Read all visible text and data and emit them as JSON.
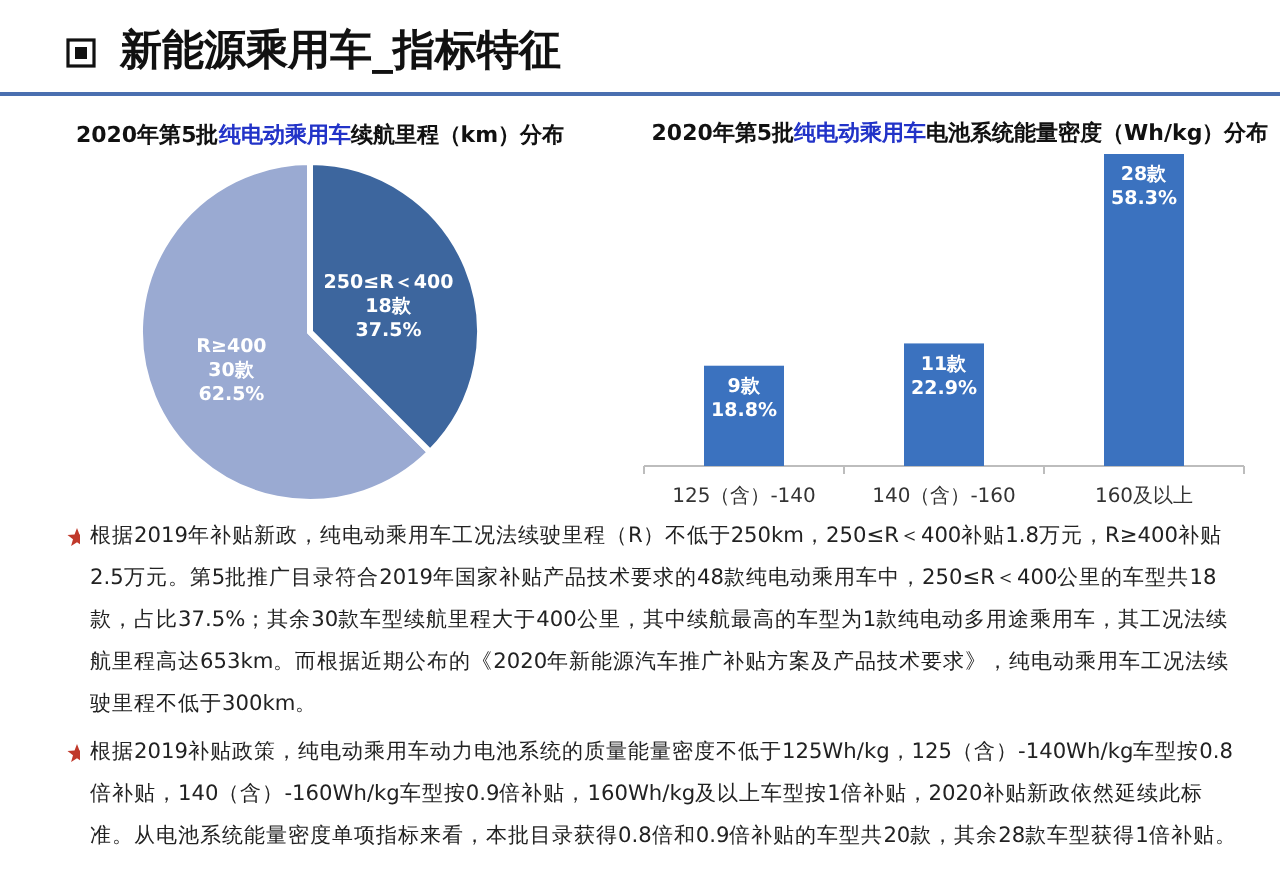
{
  "chart_data": [
    {
      "type": "other",
      "title": "新能源乘用车_指标特征"
    },
    {
      "type": "pie",
      "title": "2020年第5批**纯电动乘用车**续航里程（km）分布",
      "categories": [
        "R≥400",
        "250≤R＜400"
      ],
      "values": [
        30,
        18
      ],
      "value_labels": [
        "30款\n62.5%",
        "18款\n37.5%"
      ],
      "colors": [
        "#9aaad2",
        "#3d669e"
      ]
    },
    {
      "type": "bar",
      "title": "2020年第5批**纯电动乘用车**电池系统能量密度（Wh/kg）分布",
      "categories": [
        "125（含）-140",
        "140（含）-160",
        "160及以上"
      ],
      "values": [
        9,
        11,
        28
      ],
      "value_labels": [
        "9款\n18.8%",
        "11款\n22.9%",
        "28款\n58.3%"
      ],
      "color": "#3b72bf"
    },
    {
      "type": "other",
      "annotations": [
        "根据2019年补贴新政，纯电动乘用车工况法续驶里程（R）不低于250km，250≤R＜400补贴1.8万元，R≥400补贴2.5万元。第5批推广目录符合2019年国家补贴产品技术要求的48款纯电动乘用车中，250≤R＜400公里的车型共18款，占比37.5%；其余30款车型续航里程大于400公里，其中续航最高的车型为1款纯电动多用途乘用车，其工况法续航里程高达653km。而根据近期公布的《2020年新能源汽车推广补贴方案及产品技术要求》，纯电动乘用车工况法续驶里程不低于300km。",
        "根据2019补贴政策，纯电动乘用车动力电池系统的质量能量密度不低于125Wh/kg，125（含）-140Wh/kg车型按0.8倍补贴，140（含）-160Wh/kg车型按0.9倍补贴，160Wh/kg及以上车型按1倍补贴，2020补贴新政依然延续此标准。从电池系统能量密度单项指标来看，本批目录获得0.8倍和0.9倍补贴的车型共20款，其余28款车型获得1倍补贴。"
      ]
    }
  ]
}
